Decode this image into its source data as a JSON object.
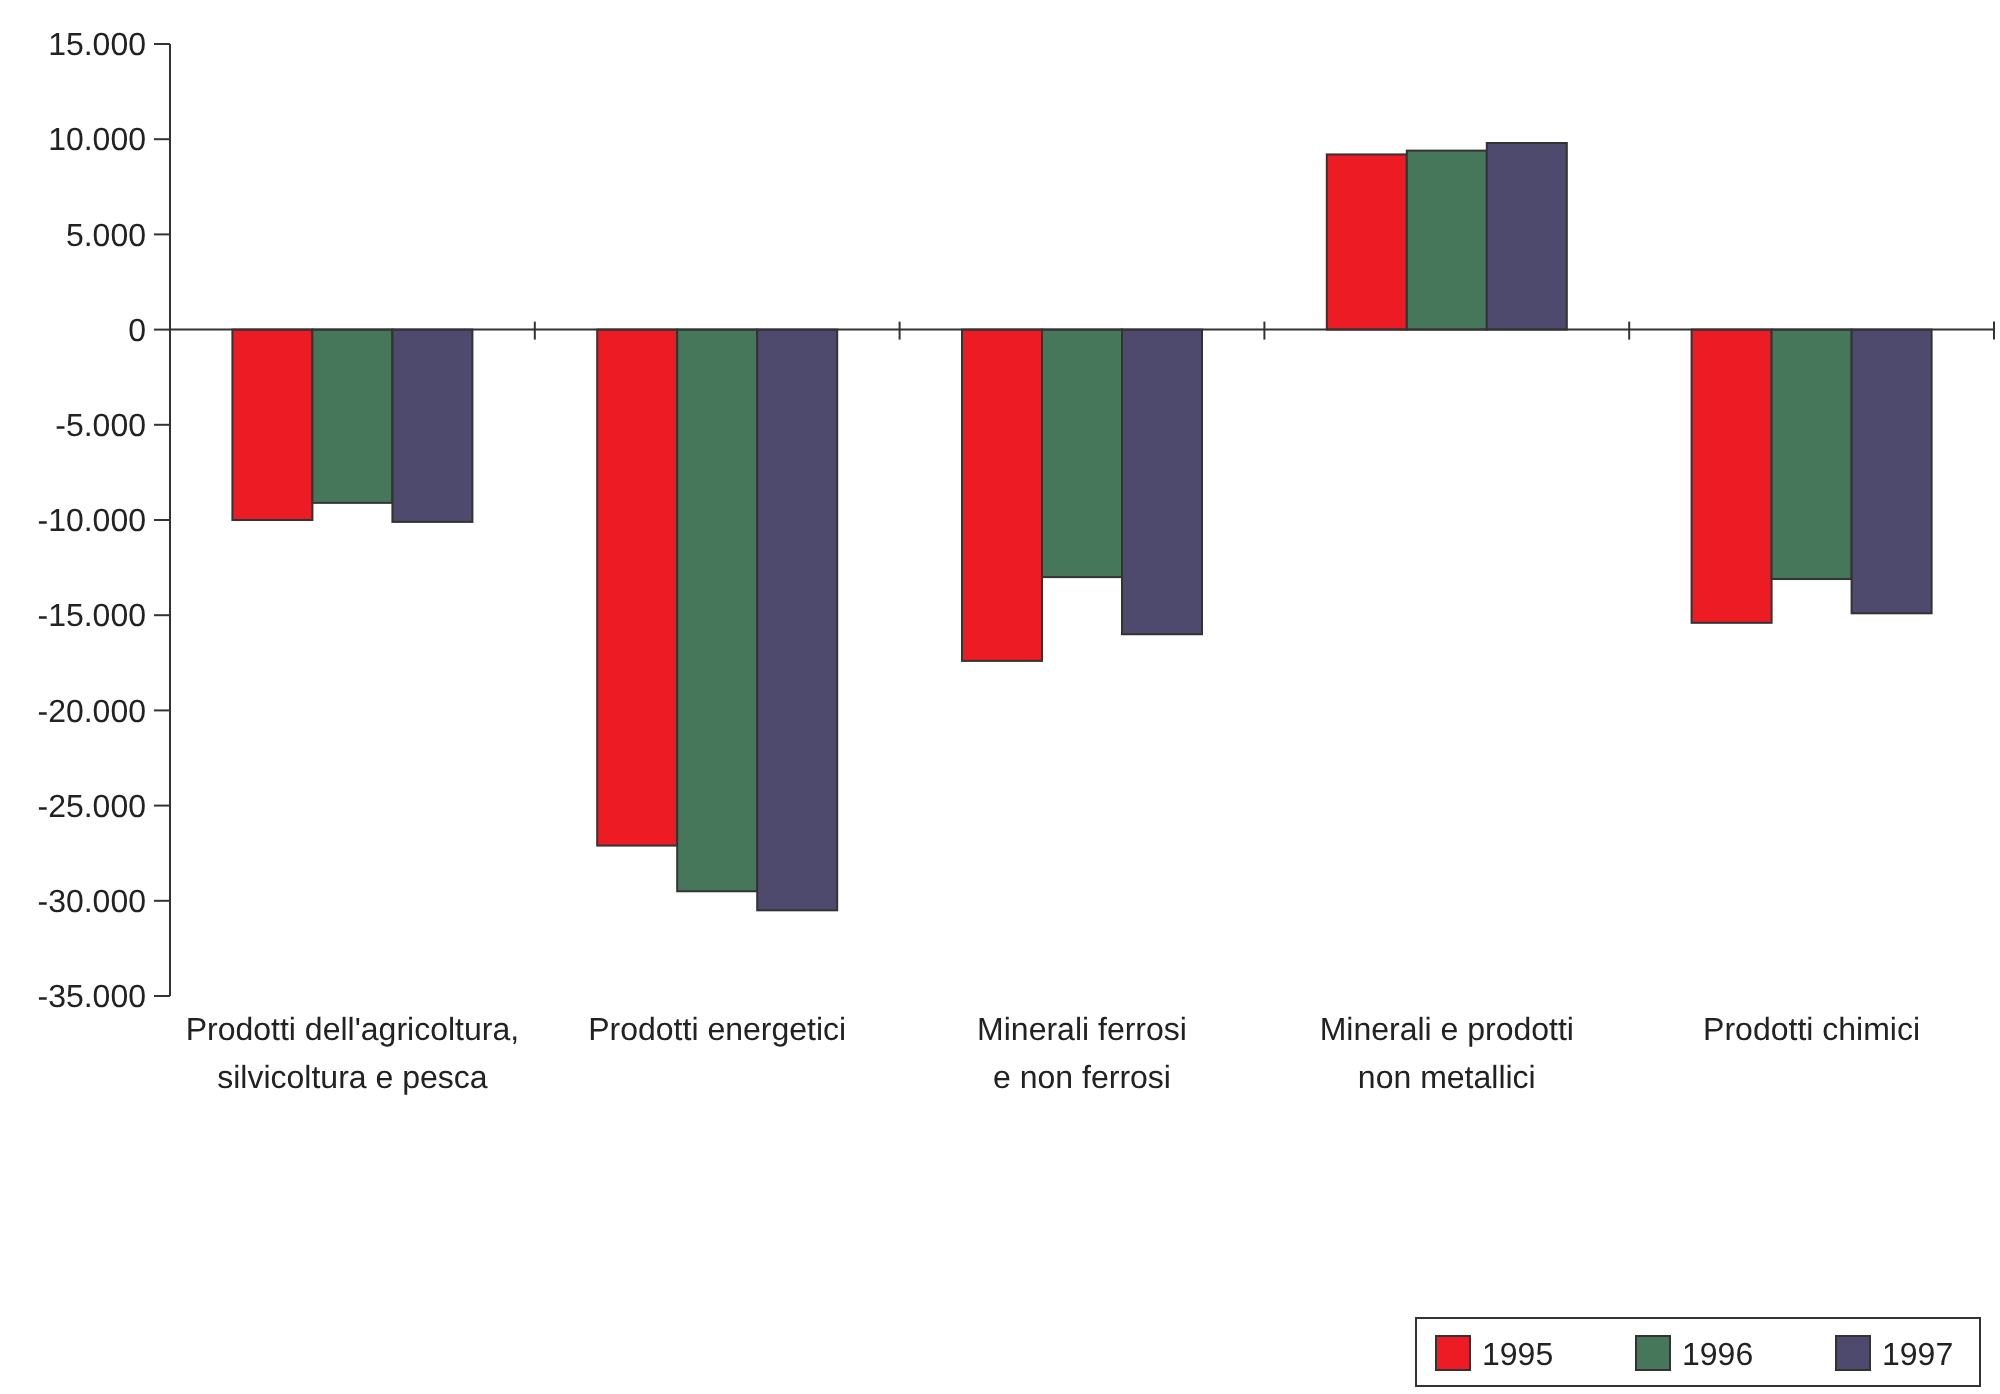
{
  "chart_data": {
    "type": "bar",
    "categories": [
      "Prodotti dell'agricoltura, silvicoltura e pesca",
      "Prodotti energetici",
      "Minerali ferrosi e non ferrosi",
      "Minerali e prodotti non metallici",
      "Prodotti chimici"
    ],
    "series": [
      {
        "name": "1995",
        "color": "#ed1c24",
        "values": [
          -10000,
          -27100,
          -17400,
          9200,
          -15400
        ]
      },
      {
        "name": "1996",
        "color": "#47775a",
        "values": [
          -9100,
          -29500,
          -13000,
          9400,
          -13100
        ]
      },
      {
        "name": "1997",
        "color": "#4e4a6e",
        "values": [
          -10100,
          -30500,
          -16000,
          9800,
          -14900
        ]
      }
    ],
    "ylim": [
      -35000,
      15000
    ],
    "yticks": [
      {
        "value": -35000,
        "label": "-35.000"
      },
      {
        "value": -30000,
        "label": "-30.000"
      },
      {
        "value": -25000,
        "label": "-25.000"
      },
      {
        "value": -20000,
        "label": "-20.000"
      },
      {
        "value": -15000,
        "label": "-15.000"
      },
      {
        "value": -10000,
        "label": "-10.000"
      },
      {
        "value": -5000,
        "label": "-5.000"
      },
      0,
      {
        "value": 5000,
        "label": "5.000"
      },
      {
        "value": 10000,
        "label": "10.000"
      },
      {
        "value": 15000,
        "label": "15.000"
      }
    ],
    "legend": "bottom right"
  }
}
